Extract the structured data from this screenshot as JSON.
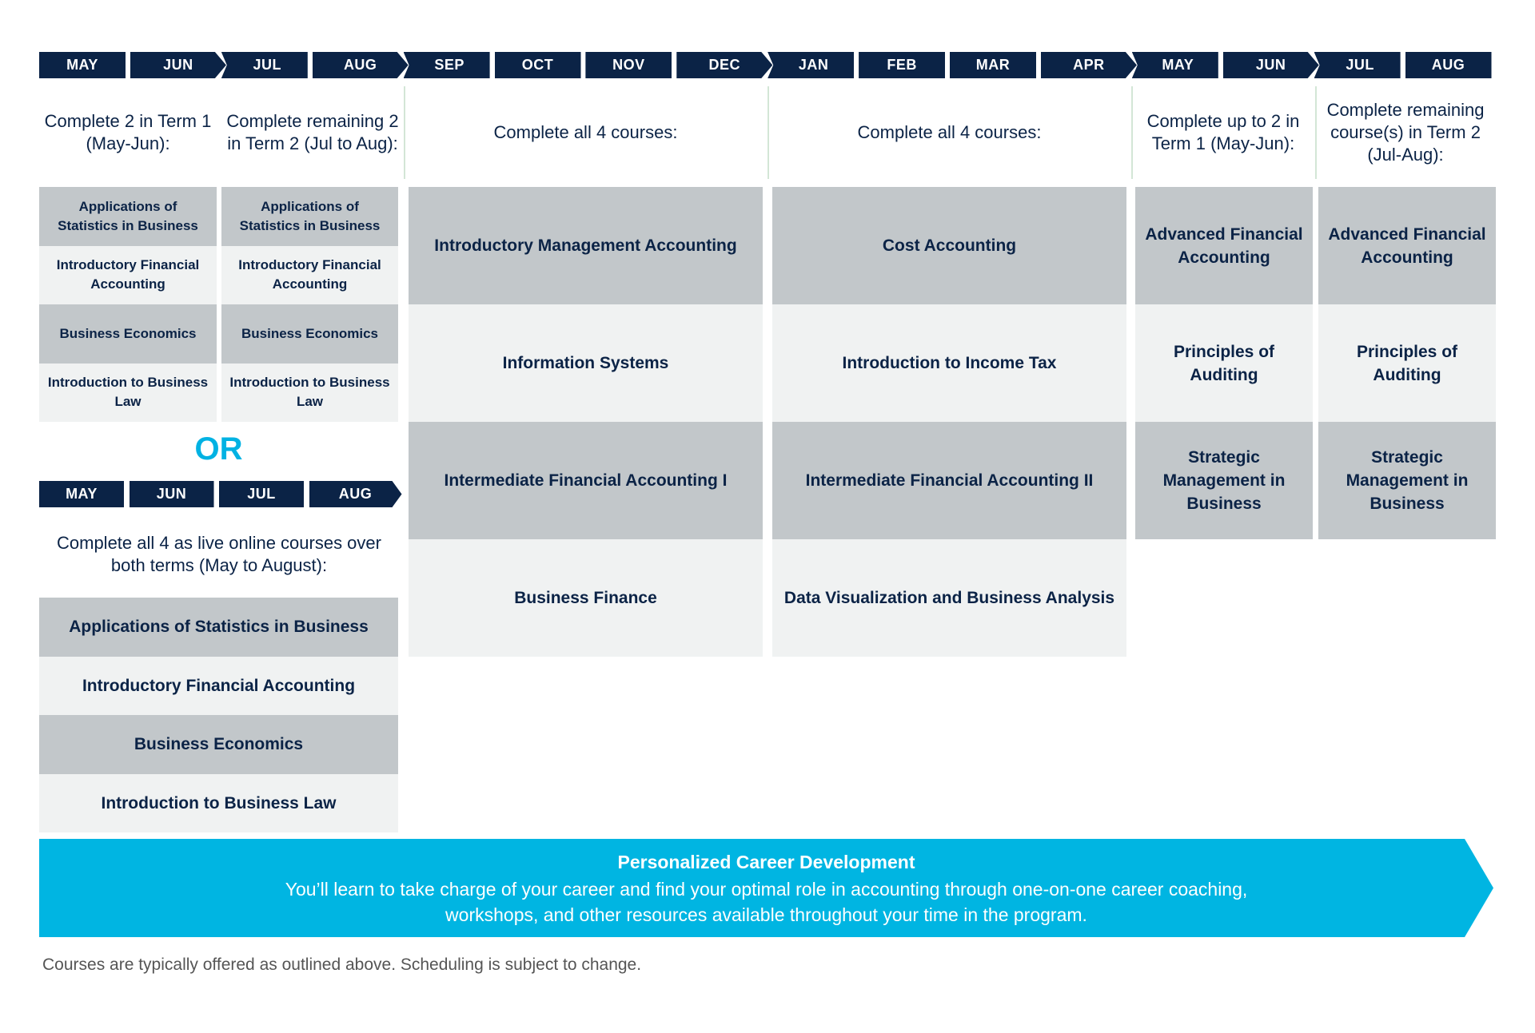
{
  "colors": {
    "navy": "#0b2346",
    "accent": "#00b2e3",
    "gray_cell": "#c2c7ca",
    "light_cell": "#f0f2f2"
  },
  "timeline": {
    "months": [
      "MAY",
      "JUN",
      "JUL",
      "AUG",
      "SEP",
      "OCT",
      "NOV",
      "DEC",
      "JAN",
      "FEB",
      "MAR",
      "APR",
      "MAY",
      "JUN",
      "JUL",
      "AUG"
    ]
  },
  "columns": [
    {
      "header": "Complete 2 in Term 1 (May-Jun):",
      "courses": [
        "Applications of Statistics in Business",
        "Introductory Financial Accounting",
        "Business Economics",
        "Introduction to Business Law"
      ]
    },
    {
      "header": "Complete remaining 2 in Term 2 (Jul to Aug):",
      "courses": [
        "Applications of Statistics in Business",
        "Introductory Financial Accounting",
        "Business Economics",
        "Introduction to Business Law"
      ]
    },
    {
      "header": "Complete all 4 courses:",
      "courses": [
        "Introductory Management Accounting",
        "Information Systems",
        "Intermediate Financial Accounting I",
        "Business Finance"
      ]
    },
    {
      "header": "Complete all 4 courses:",
      "courses": [
        "Cost Accounting",
        "Introduction to Income Tax",
        "Intermediate Financial Accounting II",
        "Data Visualization and Business Analysis"
      ]
    },
    {
      "header": "Complete up to 2 in Term 1 (May-Jun):",
      "courses": [
        "Advanced Financial Accounting",
        "Principles of Auditing",
        "Strategic Management in Business"
      ]
    },
    {
      "header": "Complete remaining course(s) in Term 2 (Jul-Aug):",
      "courses": [
        "Advanced Financial Accounting",
        "Principles of Auditing",
        "Strategic Management in Business"
      ]
    }
  ],
  "alternative": {
    "or_label": "OR",
    "months": [
      "MAY",
      "JUN",
      "JUL",
      "AUG"
    ],
    "header": "Complete all 4 as live online courses over both terms (May to August):",
    "courses": [
      "Applications of Statistics in Business",
      "Introductory Financial Accounting",
      "Business Economics",
      "Introduction to Business Law"
    ]
  },
  "banner": {
    "title": "Personalized Career Development",
    "description": "You’ll learn to take charge of your career and find your optimal role in accounting through one-on-one career coaching, workshops, and other resources available throughout your time in the program."
  },
  "footnote": "Courses are typically offered as outlined above. Scheduling is subject to change."
}
